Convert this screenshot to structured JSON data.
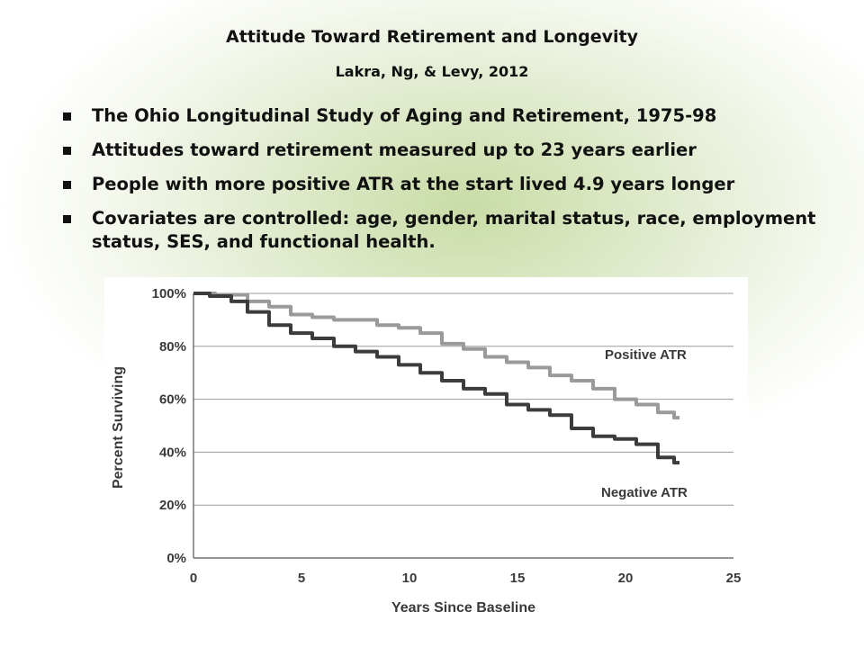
{
  "slide": {
    "title": "Attitude Toward Retirement and Longevity",
    "subtitle": "Lakra, Ng, & Levy, 2012",
    "bullets": [
      "The Ohio Longitudinal Study of Aging and Retirement, 1975-98",
      "Attitudes toward retirement measured up to 23 years earlier",
      "People with more positive ATR at the start lived 4.9 years longer",
      "Covariates are controlled: age, gender, marital status, race, employment status, SES, and functional health."
    ]
  },
  "chart_data": {
    "type": "line",
    "title": "",
    "xlabel": "Years Since Baseline",
    "ylabel": "Percent Surviving",
    "xlim": [
      0,
      25
    ],
    "ylim": [
      0,
      100
    ],
    "x_ticks": [
      "0",
      "5",
      "10",
      "15",
      "20",
      "25"
    ],
    "y_ticks": [
      "0%",
      "20%",
      "40%",
      "60%",
      "80%",
      "100%"
    ],
    "grid": "horizontal",
    "series": [
      {
        "name": "Positive ATR",
        "color": "#9a9a9a",
        "x": [
          0,
          2,
          3,
          4,
          5,
          6,
          7,
          8,
          9,
          10,
          11,
          12,
          13,
          14,
          15,
          16,
          17,
          18,
          19,
          20,
          21,
          22,
          22.5
        ],
        "y": [
          100,
          99.5,
          97,
          95,
          92,
          91,
          90,
          90,
          88,
          87,
          85,
          81,
          79,
          76,
          74,
          72,
          69,
          67,
          64,
          60,
          58,
          55,
          53
        ]
      },
      {
        "name": "Negative ATR",
        "color": "#3c3c3c",
        "x": [
          0,
          1.5,
          2,
          3,
          4,
          5,
          6,
          7,
          8,
          9,
          10,
          11,
          12,
          13,
          14,
          15,
          16,
          17,
          18,
          19,
          20,
          21,
          22,
          22.5
        ],
        "y": [
          100,
          99,
          97,
          93,
          88,
          85,
          83,
          80,
          78,
          76,
          73,
          70,
          67,
          64,
          62,
          58,
          56,
          54,
          49,
          46,
          45,
          43,
          38,
          36
        ]
      }
    ],
    "annotations": [
      "Positive ATR",
      "Negative ATR"
    ]
  }
}
